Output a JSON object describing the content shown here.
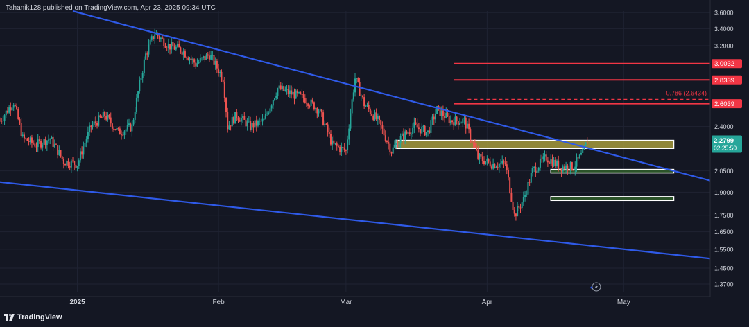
{
  "header": {
    "text": "Tahanik128 published on TradingView.com, Apr 23, 2025 09:34 UTC"
  },
  "footer": {
    "brand": "TradingView"
  },
  "colors": {
    "background": "#141723",
    "grid": "#1f2333",
    "axis_text": "#d1d4dc",
    "trendline": "#2f5ae8",
    "level_red": "#f23645",
    "candle_up": "#26a69a",
    "candle_down": "#ef5350",
    "zone_yellow": "#a59a3c",
    "zone_green": "#2f5a2a",
    "price_tag": "#26a69a"
  },
  "icons": {
    "replay": "lightning-icon"
  },
  "chart_data": {
    "type": "candlestick",
    "symbol_unit": "USD",
    "y_ticks": [
      3.6,
      3.4,
      3.2,
      2.4,
      2.05,
      1.9,
      1.75,
      1.65,
      1.55,
      1.45,
      1.37
    ],
    "y_tick_labels": [
      "3.6000",
      "3.4000",
      "3.2000",
      "2.4000",
      "2.0500",
      "1.9000",
      "1.7500",
      "1.6500",
      "1.5500",
      "1.4500",
      "1.3700"
    ],
    "y_scale": "log",
    "ylim": [
      1.33,
      3.62
    ],
    "x_tick_labels": [
      "2025",
      "Feb",
      "Mar",
      "Apr",
      "May"
    ],
    "x_tick_dates": [
      "2025-01-01",
      "2025-02-01",
      "2025-03-01",
      "2025-04-01",
      "2025-05-01"
    ],
    "xlim": [
      "2024-12-15",
      "2025-05-20"
    ],
    "price_levels": [
      {
        "label": "3.0032",
        "value": 3.0032,
        "style": "solid"
      },
      {
        "label": "2.8339",
        "value": 2.8339,
        "style": "solid"
      },
      {
        "label": "2.6039",
        "value": 2.6039,
        "style": "solid"
      }
    ],
    "fib_level": {
      "label": "0.786 (2.6434)",
      "value": 2.6434,
      "style": "dashed"
    },
    "current_price": {
      "value": 2.2799,
      "label": "2.2799",
      "countdown": "02:25:50"
    },
    "trendlines": [
      {
        "name": "upper",
        "points": [
          [
            "2024-12-31",
            3.62
          ],
          [
            "2025-05-20",
            1.98
          ]
        ]
      },
      {
        "name": "lower",
        "points": [
          [
            "2024-12-15",
            1.97
          ],
          [
            "2025-05-20",
            1.5
          ]
        ]
      }
    ],
    "zones": [
      {
        "name": "resistance-zone",
        "color": "yellow",
        "from": "2025-03-12",
        "to": "2025-05-12",
        "low": 2.22,
        "high": 2.285
      },
      {
        "name": "support-zone-1",
        "color": "green",
        "from": "2025-04-15",
        "to": "2025-05-12",
        "low": 2.035,
        "high": 2.06
      },
      {
        "name": "support-zone-2",
        "color": "green",
        "from": "2025-04-15",
        "to": "2025-05-12",
        "low": 1.845,
        "high": 1.87
      }
    ],
    "candles_timeframe": "4h",
    "price_path": [
      [
        "2024-12-15",
        2.45
      ],
      [
        "2024-12-18",
        2.62
      ],
      [
        "2024-12-20",
        2.3
      ],
      [
        "2024-12-23",
        2.25
      ],
      [
        "2024-12-26",
        2.3
      ],
      [
        "2024-12-29",
        2.12
      ],
      [
        "2025-01-01",
        2.1
      ],
      [
        "2025-01-04",
        2.4
      ],
      [
        "2025-01-07",
        2.5
      ],
      [
        "2025-01-10",
        2.35
      ],
      [
        "2025-01-13",
        2.4
      ],
      [
        "2025-01-16",
        3.1
      ],
      [
        "2025-01-18",
        3.35
      ],
      [
        "2025-01-21",
        3.2
      ],
      [
        "2025-01-24",
        3.15
      ],
      [
        "2025-01-27",
        3.0
      ],
      [
        "2025-01-30",
        3.1
      ],
      [
        "2025-02-02",
        2.85
      ],
      [
        "2025-02-03",
        2.4
      ],
      [
        "2025-02-05",
        2.5
      ],
      [
        "2025-02-08",
        2.4
      ],
      [
        "2025-02-11",
        2.45
      ],
      [
        "2025-02-14",
        2.75
      ],
      [
        "2025-02-17",
        2.7
      ],
      [
        "2025-02-20",
        2.65
      ],
      [
        "2025-02-23",
        2.55
      ],
      [
        "2025-02-26",
        2.25
      ],
      [
        "2025-03-01",
        2.2
      ],
      [
        "2025-03-03",
        2.85
      ],
      [
        "2025-03-05",
        2.6
      ],
      [
        "2025-03-08",
        2.45
      ],
      [
        "2025-03-11",
        2.2
      ],
      [
        "2025-03-13",
        2.3
      ],
      [
        "2025-03-16",
        2.4
      ],
      [
        "2025-03-19",
        2.35
      ],
      [
        "2025-03-21",
        2.55
      ],
      [
        "2025-03-24",
        2.45
      ],
      [
        "2025-03-27",
        2.45
      ],
      [
        "2025-03-30",
        2.15
      ],
      [
        "2025-04-02",
        2.1
      ],
      [
        "2025-04-05",
        2.1
      ],
      [
        "2025-04-07",
        1.75
      ],
      [
        "2025-04-09",
        1.85
      ],
      [
        "2025-04-11",
        2.05
      ],
      [
        "2025-04-14",
        2.15
      ],
      [
        "2025-04-17",
        2.08
      ],
      [
        "2025-04-20",
        2.08
      ],
      [
        "2025-04-22",
        2.18
      ],
      [
        "2025-04-23",
        2.28
      ]
    ]
  }
}
